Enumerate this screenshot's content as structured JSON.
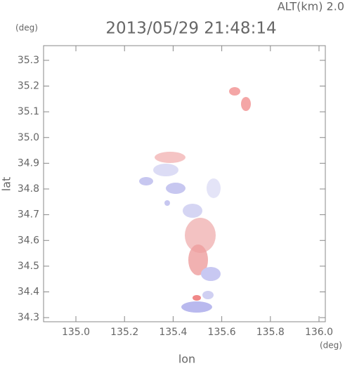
{
  "chart_data": {
    "type": "image",
    "title": "2013/05/29 21:48:14",
    "subtitle": "ALT(km) 2.0",
    "x_label": "lon",
    "y_label": "lat",
    "x_unit": "(deg)",
    "y_unit": "(deg)",
    "xlim": [
      134.867,
      136.026
    ],
    "ylim": [
      34.284,
      35.357
    ],
    "xticks": [
      {
        "value": 135.0,
        "label": "135.0"
      },
      135.2,
      135.4,
      135.6,
      135.8,
      {
        "value": 136.0,
        "label": "136.0"
      }
    ],
    "yticks": [
      34.3,
      34.4,
      34.5,
      34.6,
      34.7,
      34.8,
      34.9,
      {
        "value": 35.0,
        "label": "35.0"
      },
      35.1,
      35.2,
      35.3
    ]
  }
}
